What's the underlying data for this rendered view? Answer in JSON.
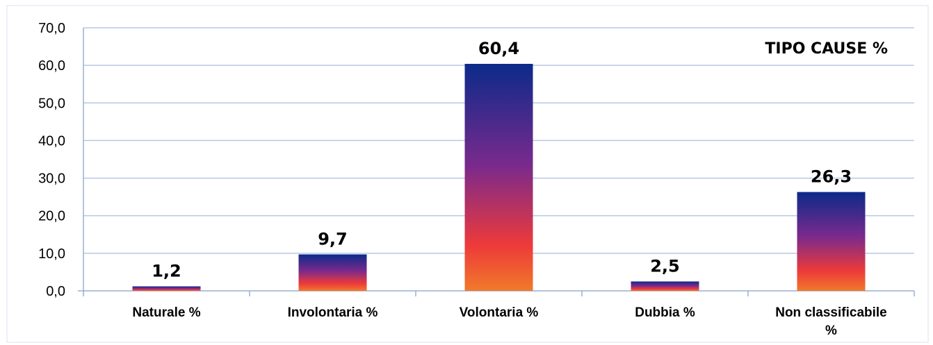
{
  "chart_data": {
    "type": "bar",
    "title": "TIPO CAUSE %",
    "categories": [
      [
        "Naturale %"
      ],
      [
        "Involontaria %"
      ],
      [
        "Volontaria %"
      ],
      [
        "Dubbia %"
      ],
      [
        "Non classificabile",
        "%"
      ]
    ],
    "values": [
      1.2,
      9.7,
      60.4,
      2.5,
      26.3
    ],
    "value_labels": [
      "1,2",
      "9,7",
      "60,4",
      "2,5",
      "26,3"
    ],
    "ylim": [
      0,
      70
    ],
    "yticks": [
      "0,0",
      "10,0",
      "20,0",
      "30,0",
      "40,0",
      "50,0",
      "60,0",
      "70,0"
    ],
    "grid": true,
    "legend": "none",
    "colors": {
      "gradient_top": "#0b2a8a",
      "gradient_mid": "#7a2a8c",
      "gradient_low": "#ee3a3a",
      "gradient_bottom": "#f07a2a",
      "grid": "#b8c7e6",
      "axis": "#9aaed6"
    }
  }
}
